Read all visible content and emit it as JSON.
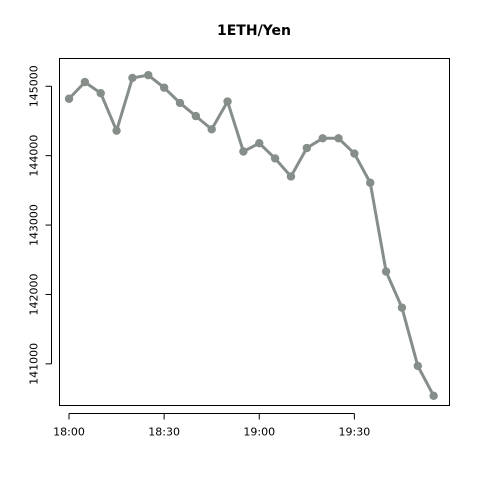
{
  "chart_data": {
    "type": "line",
    "title": "1ETH/Yen",
    "xlabel": "",
    "ylabel": "",
    "x_unit": "time",
    "x": [
      "18:00",
      "18:05",
      "18:10",
      "18:15",
      "18:20",
      "18:25",
      "18:30",
      "18:35",
      "18:40",
      "18:45",
      "18:50",
      "18:55",
      "19:00",
      "19:05",
      "19:10",
      "19:15",
      "19:20",
      "19:25",
      "19:30",
      "19:35",
      "19:40",
      "19:45",
      "19:50",
      "19:55"
    ],
    "series": [
      {
        "name": "",
        "values": [
          144820,
          145060,
          144900,
          144360,
          145120,
          145160,
          144980,
          144760,
          144570,
          144380,
          144780,
          144060,
          144180,
          143960,
          143700,
          144110,
          144250,
          144250,
          144030,
          143610,
          142330,
          141810,
          140970,
          140540
        ]
      }
    ],
    "xlim": [
      "17:57",
      "20:00"
    ],
    "ylim": [
      140400,
      145400
    ],
    "xticks": [
      "18:00",
      "18:30",
      "19:00",
      "19:30"
    ],
    "yticks": [
      141000,
      142000,
      143000,
      144000,
      145000
    ],
    "ytick_labels": [
      "141000",
      "142000",
      "143000",
      "144000",
      "145000"
    ],
    "grid": false,
    "legend": "none",
    "line_color": "#868e8a",
    "marker": "circle"
  }
}
